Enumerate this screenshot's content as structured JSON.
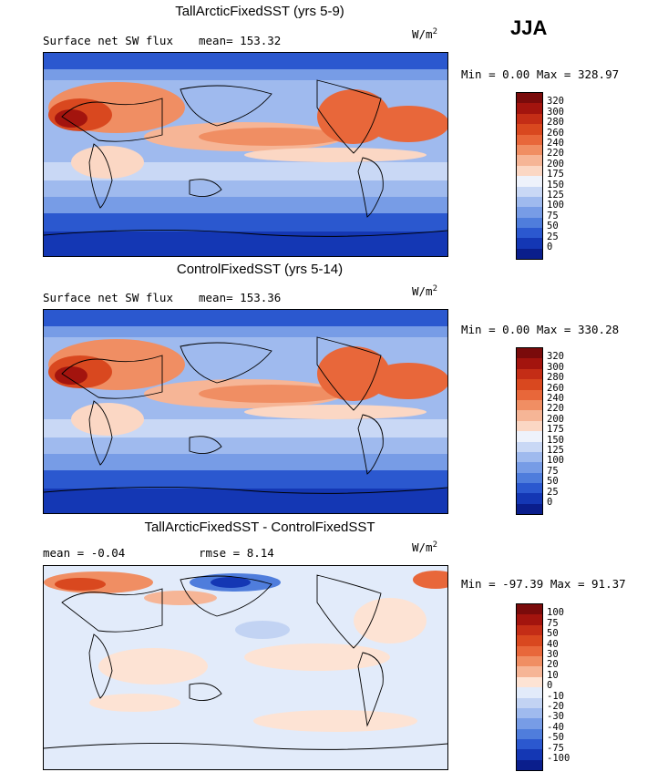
{
  "season": "JJA",
  "panels": [
    {
      "title": "TallArcticFixedSST (yrs 5-9)",
      "variable": "Surface net SW flux",
      "mean_label": "mean=",
      "mean": "153.32",
      "units_base": "W/m",
      "units_exp": "2",
      "min_label": "Min =",
      "min": "0.00",
      "max_label": "Max =",
      "max": "328.97",
      "colorbar_levels": [
        "320",
        "300",
        "280",
        "260",
        "240",
        "220",
        "200",
        "175",
        "150",
        "125",
        "100",
        "75",
        "50",
        "25",
        "0"
      ]
    },
    {
      "title": "ControlFixedSST (yrs 5-14)",
      "variable": "Surface net SW flux",
      "mean_label": "mean=",
      "mean": "153.36",
      "units_base": "W/m",
      "units_exp": "2",
      "min_label": "Min =",
      "min": "0.00",
      "max_label": "Max =",
      "max": "330.28",
      "colorbar_levels": [
        "320",
        "300",
        "280",
        "260",
        "240",
        "220",
        "200",
        "175",
        "150",
        "125",
        "100",
        "75",
        "50",
        "25",
        "0"
      ]
    },
    {
      "title": "TallArcticFixedSST - ControlFixedSST",
      "mean_label": "mean =",
      "mean": "-0.04",
      "rmse_label": "rmse =",
      "rmse": "8.14",
      "units_base": "W/m",
      "units_exp": "2",
      "min_label": "Min =",
      "min": "-97.39",
      "max_label": "Max =",
      "max": "91.37",
      "colorbar_levels": [
        "100",
        "75",
        "50",
        "40",
        "30",
        "20",
        "10",
        "0",
        "-10",
        "-20",
        "-30",
        "-40",
        "-50",
        "-75",
        "-100"
      ]
    }
  ],
  "colors": {
    "abs_scale": [
      "#7a0b0b",
      "#a3140e",
      "#c42d16",
      "#d9481f",
      "#e8673a",
      "#f08e63",
      "#f6b596",
      "#fbd7c4",
      "#eef2fb",
      "#c9d8f5",
      "#9fbaee",
      "#779ce6",
      "#4f7ddc",
      "#2b58cf",
      "#1437b4",
      "#0a1e8c"
    ],
    "diff_scale": [
      "#7a0b0b",
      "#a3140e",
      "#c42d16",
      "#d9481f",
      "#e8673a",
      "#f08e63",
      "#f6b596",
      "#fde3d4",
      "#e2ebfa",
      "#c2d3f3",
      "#9fbaee",
      "#779ce6",
      "#4f7ddc",
      "#2b58cf",
      "#1437b4",
      "#0a1e8c"
    ]
  },
  "chart_data": [
    {
      "type": "heatmap",
      "title": "TallArcticFixedSST (yrs 5-9)",
      "subtitle": "Surface net SW flux",
      "units": "W/m2",
      "mean": 153.32,
      "min": 0.0,
      "max": 328.97,
      "levels": [
        0,
        25,
        50,
        75,
        100,
        125,
        150,
        175,
        200,
        220,
        240,
        260,
        280,
        300,
        320
      ]
    },
    {
      "type": "heatmap",
      "title": "ControlFixedSST (yrs 5-14)",
      "subtitle": "Surface net SW flux",
      "units": "W/m2",
      "mean": 153.36,
      "min": 0.0,
      "max": 330.28,
      "levels": [
        0,
        25,
        50,
        75,
        100,
        125,
        150,
        175,
        200,
        220,
        240,
        260,
        280,
        300,
        320
      ]
    },
    {
      "type": "heatmap",
      "title": "TallArcticFixedSST - ControlFixedSST",
      "units": "W/m2",
      "mean": -0.04,
      "rmse": 8.14,
      "min": -97.39,
      "max": 91.37,
      "levels": [
        -100,
        -75,
        -50,
        -40,
        -30,
        -20,
        -10,
        0,
        10,
        20,
        30,
        40,
        50,
        75,
        100
      ]
    }
  ]
}
